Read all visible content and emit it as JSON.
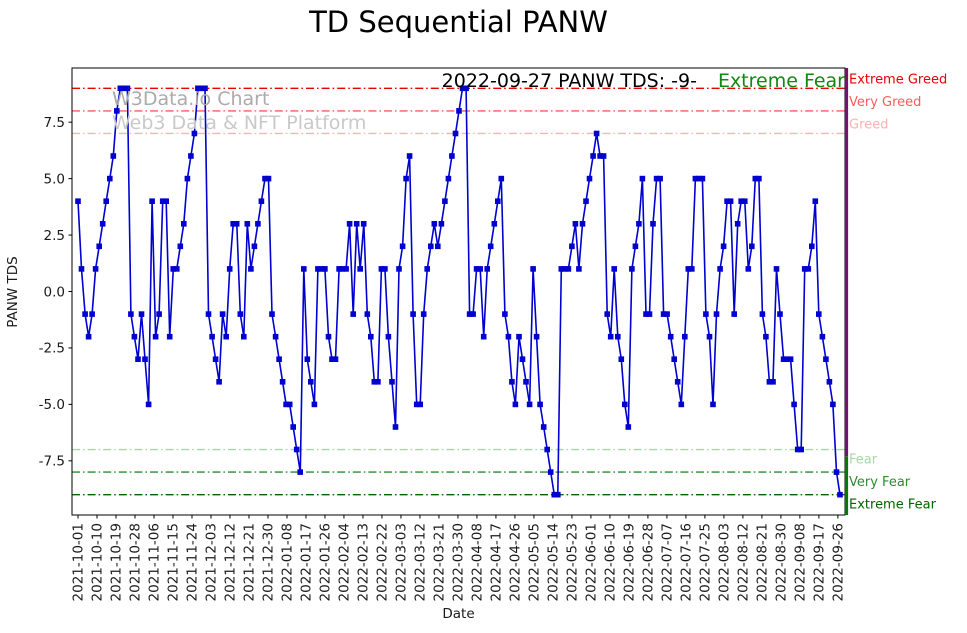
{
  "title": "TD Sequential PANW",
  "annotation": {
    "text": "2022-09-27 PANW TDS: -9-",
    "sentiment": "Extreme Fear",
    "sentiment_color": "#128712"
  },
  "watermark": {
    "line1": "W3Data.io Chart",
    "line2": "Web3 Data & NFT Platform"
  },
  "chart_data": {
    "type": "line",
    "title": "TD Sequential PANW",
    "xlabel": "Date",
    "ylabel": "PANW TDS",
    "ylim": [
      -9.9,
      9.9
    ],
    "grid": "off",
    "legend": "off",
    "yticks": [
      -7.5,
      -5.0,
      -2.5,
      0.0,
      2.5,
      5.0,
      7.5
    ],
    "ytick_labels": [
      "-7.5",
      "-5.0",
      "-2.5",
      "0.0",
      "2.5",
      "5.0",
      "7.5"
    ],
    "x_tick_interval_days": 9,
    "x_tick_labels": [
      "2021-10-01",
      "2021-10-10",
      "2021-10-19",
      "2021-10-28",
      "2021-11-06",
      "2021-11-15",
      "2021-11-24",
      "2021-12-03",
      "2021-12-12",
      "2021-12-21",
      "2021-12-30",
      "2022-01-08",
      "2022-01-17",
      "2022-01-26",
      "2022-02-04",
      "2022-02-13",
      "2022-02-22",
      "2022-03-03",
      "2022-03-12",
      "2022-03-21",
      "2022-03-30",
      "2022-04-08",
      "2022-04-17",
      "2022-04-26",
      "2022-05-05",
      "2022-05-14",
      "2022-05-23",
      "2022-06-01",
      "2022-06-10",
      "2022-06-19",
      "2022-06-28",
      "2022-07-07",
      "2022-07-16",
      "2022-07-25",
      "2022-08-03",
      "2022-08-12",
      "2022-08-21",
      "2022-08-30",
      "2022-09-08",
      "2022-09-17",
      "2022-09-26"
    ],
    "series": [
      {
        "name": "PANW TDS",
        "color": "#0000d0",
        "marker": "square",
        "values": [
          4,
          1,
          -1,
          -2,
          -1,
          1,
          2,
          3,
          4,
          5,
          6,
          8,
          9,
          9,
          9,
          -1,
          -2,
          -3,
          -1,
          -3,
          -5,
          4,
          -2,
          -1,
          4,
          4,
          -2,
          1,
          1,
          2,
          3,
          5,
          6,
          7,
          9,
          9,
          9,
          -1,
          -2,
          -3,
          -4,
          -1,
          -2,
          1,
          3,
          3,
          -1,
          -2,
          3,
          1,
          2,
          3,
          4,
          5,
          5,
          -1,
          -2,
          -3,
          -4,
          -5,
          -5,
          -6,
          -7,
          -8,
          1,
          -3,
          -4,
          -5,
          1,
          1,
          1,
          -2,
          -3,
          -3,
          1,
          1,
          1,
          3,
          -1,
          3,
          1,
          3,
          -1,
          -2,
          -4,
          -4,
          1,
          1,
          -2,
          -4,
          -6,
          1,
          2,
          5,
          6,
          -1,
          -5,
          -5,
          -1,
          1,
          2,
          3,
          2,
          3,
          4,
          5,
          6,
          7,
          8,
          9,
          9,
          -1,
          -1,
          1,
          1,
          -2,
          1,
          2,
          3,
          4,
          5,
          -1,
          -2,
          -4,
          -5,
          -2,
          -3,
          -4,
          -5,
          1,
          -2,
          -5,
          -6,
          -7,
          -8,
          -9,
          -9,
          1,
          1,
          1,
          2,
          3,
          1,
          3,
          4,
          5,
          6,
          7,
          6,
          6,
          -1,
          -2,
          1,
          -2,
          -3,
          -5,
          -6,
          1,
          2,
          3,
          5,
          -1,
          -1,
          3,
          5,
          5,
          -1,
          -1,
          -2,
          -3,
          -4,
          -5,
          -2,
          1,
          1,
          5,
          5,
          5,
          -1,
          -2,
          -5,
          -1,
          1,
          2,
          4,
          4,
          -1,
          3,
          4,
          4,
          1,
          2,
          5,
          5,
          -1,
          -2,
          -4,
          -4,
          1,
          -1,
          -3,
          -3,
          -3,
          -5,
          -7,
          -7,
          1,
          1,
          2,
          4,
          -1,
          -2,
          -3,
          -4,
          -5,
          -8,
          -9
        ]
      }
    ],
    "thresholds": [
      {
        "y": 9,
        "label": "Extreme Greed",
        "color": "#e60000"
      },
      {
        "y": 8,
        "label": "Very Greed",
        "color": "#ff5a5a"
      },
      {
        "y": 7,
        "label": "Greed",
        "color": "#ffb0b0"
      },
      {
        "y": -7,
        "label": "Fear",
        "color": "#a6d8a6"
      },
      {
        "y": -8,
        "label": "Very Fear",
        "color": "#2e8b2e"
      },
      {
        "y": -9,
        "label": "Extreme Fear",
        "color": "#006400"
      }
    ],
    "right_edge_lines": [
      {
        "color": "#7a1068",
        "from_y": 9.9,
        "to_y": -7.3
      },
      {
        "color": "#007a00",
        "from_y": -7.3,
        "to_y": -9.9
      }
    ]
  }
}
